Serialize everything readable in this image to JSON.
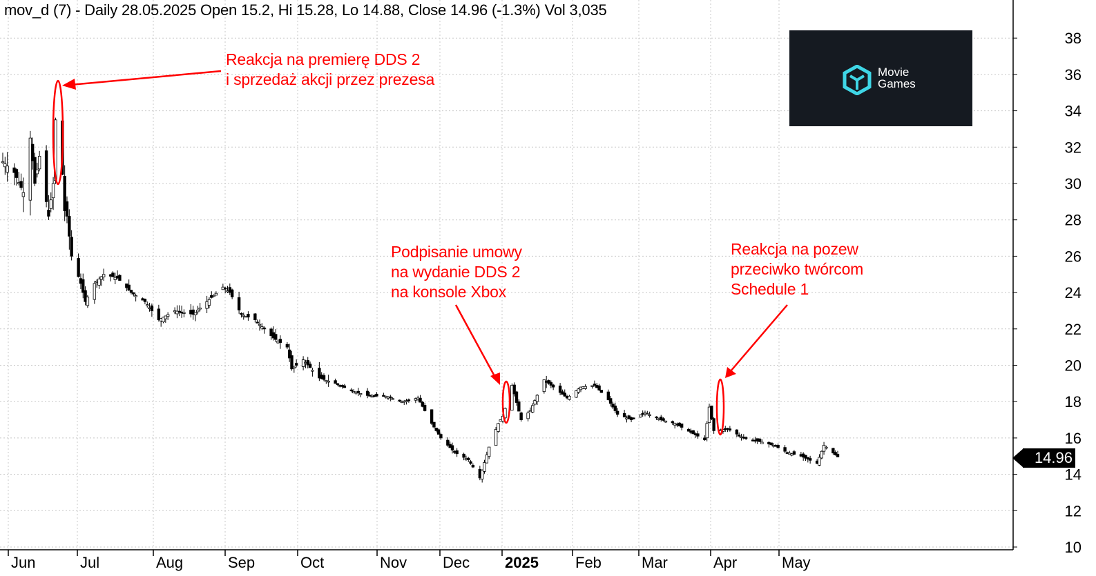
{
  "header": {
    "text": "mov_d (7) - Daily 28.05.2025 Open 15.2, Hi 15.28, Lo 14.88, Close 14.96 (-1.3%) Vol 3,035"
  },
  "annotations": {
    "dds2_reaction": [
      "Reakcja na premierę DDS 2",
      "i sprzedaż akcji przez prezesa"
    ],
    "xbox_deal": [
      "Podpisanie umowy",
      "na wydanie DDS 2",
      "na konsole Xbox"
    ],
    "lawsuit": [
      "Reakcja na pozew",
      "przeciwko twórcom",
      "Schedule 1"
    ]
  },
  "logo": {
    "line1": "Movie",
    "line2": "Games",
    "icon": "movie-games-cube-logo"
  },
  "last_price": "14.96",
  "colors": {
    "annotation": "#ff0000",
    "candle": "#000000",
    "grid": "#c8c8c8",
    "logo_bg": "#151a21",
    "logo_icon": "#3fd6e6"
  },
  "chart_data": {
    "type": "candlestick",
    "y_axis": {
      "ticks": [
        10,
        12,
        14,
        16,
        18,
        20,
        22,
        24,
        26,
        28,
        30,
        32,
        34,
        36,
        38
      ],
      "side": "right"
    },
    "x_axis": {
      "labels": [
        "Jun",
        "Jul",
        "Aug",
        "Sep",
        "Oct",
        "Nov",
        "Dec",
        "2025",
        "Feb",
        "Mar",
        "Apr",
        "May"
      ]
    },
    "grid": true,
    "approx_close_path": [
      [
        "2024-05-29",
        31.2
      ],
      [
        "2024-06-03",
        30.6
      ],
      [
        "2024-06-07",
        29.5
      ],
      [
        "2024-06-10",
        32.5
      ],
      [
        "2024-06-12",
        30.0
      ],
      [
        "2024-06-14",
        31.5
      ],
      [
        "2024-06-17",
        29.0
      ],
      [
        "2024-06-18",
        28.2
      ],
      [
        "2024-06-20",
        30.0
      ],
      [
        "2024-06-21",
        33.5
      ],
      [
        "2024-06-24",
        30.5
      ],
      [
        "2024-06-25",
        28.5
      ],
      [
        "2024-06-26",
        28.2
      ],
      [
        "2024-06-28",
        26.0
      ],
      [
        "2024-07-02",
        24.5
      ],
      [
        "2024-07-04",
        23.5
      ],
      [
        "2024-07-08",
        24.5
      ],
      [
        "2024-07-12",
        25.0
      ],
      [
        "2024-07-18",
        24.8
      ],
      [
        "2024-07-24",
        24.0
      ],
      [
        "2024-07-30",
        23.5
      ],
      [
        "2024-08-05",
        22.5
      ],
      [
        "2024-08-12",
        23.0
      ],
      [
        "2024-08-20",
        22.8
      ],
      [
        "2024-08-26",
        23.5
      ],
      [
        "2024-09-02",
        24.3
      ],
      [
        "2024-09-05",
        24.0
      ],
      [
        "2024-09-10",
        22.8
      ],
      [
        "2024-09-16",
        22.5
      ],
      [
        "2024-09-24",
        21.5
      ],
      [
        "2024-09-30",
        21.0
      ],
      [
        "2024-10-02",
        19.8
      ],
      [
        "2024-10-07",
        20.3
      ],
      [
        "2024-10-14",
        19.3
      ],
      [
        "2024-10-21",
        19.0
      ],
      [
        "2024-10-28",
        18.6
      ],
      [
        "2024-11-05",
        18.3
      ],
      [
        "2024-11-12",
        18.3
      ],
      [
        "2024-11-19",
        18.0
      ],
      [
        "2024-11-26",
        18.2
      ],
      [
        "2024-12-02",
        16.8
      ],
      [
        "2024-12-06",
        16.0
      ],
      [
        "2024-12-12",
        15.2
      ],
      [
        "2024-12-18",
        14.8
      ],
      [
        "2024-12-23",
        13.8
      ],
      [
        "2024-12-27",
        15.5
      ],
      [
        "2024-12-31",
        16.8
      ],
      [
        "2025-01-02",
        17.2
      ],
      [
        "2025-01-06",
        18.9
      ],
      [
        "2025-01-10",
        17.0
      ],
      [
        "2025-01-14",
        17.5
      ],
      [
        "2025-01-20",
        19.2
      ],
      [
        "2025-01-24",
        18.8
      ],
      [
        "2025-01-30",
        18.2
      ],
      [
        "2025-02-05",
        18.8
      ],
      [
        "2025-02-11",
        18.9
      ],
      [
        "2025-02-17",
        18.1
      ],
      [
        "2025-02-21",
        17.3
      ],
      [
        "2025-02-27",
        17.0
      ],
      [
        "2025-03-05",
        17.4
      ],
      [
        "2025-03-12",
        17.0
      ],
      [
        "2025-03-18",
        16.8
      ],
      [
        "2025-03-25",
        16.3
      ],
      [
        "2025-03-31",
        15.9
      ],
      [
        "2025-04-02",
        17.7
      ],
      [
        "2025-04-04",
        16.4
      ],
      [
        "2025-04-10",
        16.5
      ],
      [
        "2025-04-17",
        16.0
      ],
      [
        "2025-04-24",
        15.8
      ],
      [
        "2025-04-30",
        15.6
      ],
      [
        "2025-05-06",
        15.2
      ],
      [
        "2025-05-12",
        15.0
      ],
      [
        "2025-05-19",
        14.6
      ],
      [
        "2025-05-22",
        15.6
      ],
      [
        "2025-05-28",
        14.96
      ]
    ]
  }
}
